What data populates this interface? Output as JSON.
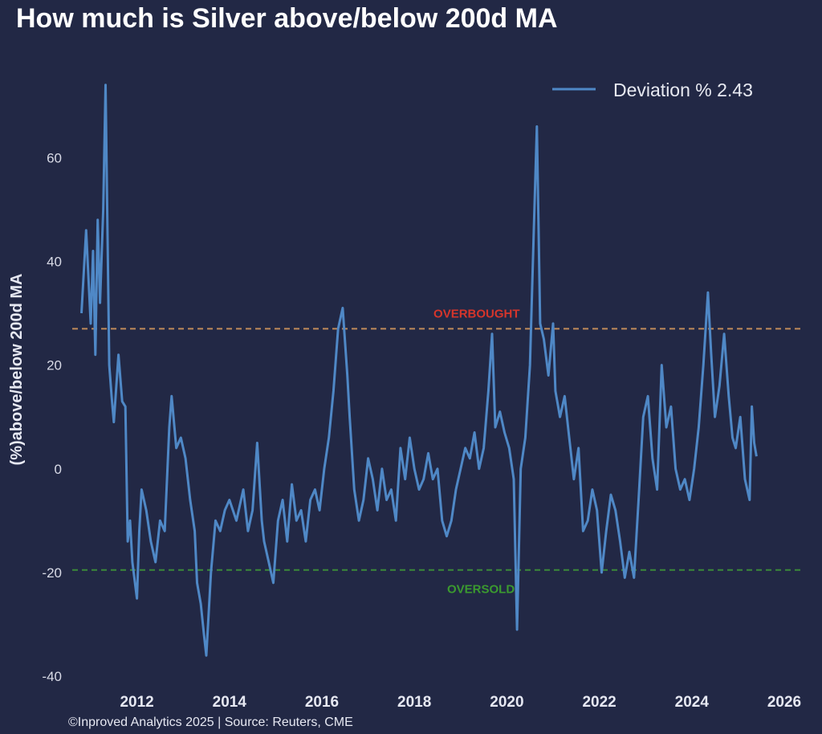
{
  "chart_data": {
    "type": "line",
    "title": "How much is Silver above/below 200d MA",
    "ylabel": "(%)above/below 200d MA",
    "xlabel": "",
    "x_ticks": [
      "2012",
      "2014",
      "2016",
      "2018",
      "2020",
      "2022",
      "2024",
      "2026"
    ],
    "y_ticks": [
      "-40",
      "-20",
      "0",
      "20",
      "40",
      "60"
    ],
    "xlim": [
      2010.6,
      2026.4
    ],
    "ylim": [
      -42,
      78
    ],
    "grid": false,
    "legend_position": "top-right",
    "series": [
      {
        "name": "Deviation % 2.43",
        "color": "#4f88c6",
        "x": [
          2010.8,
          2010.9,
          2011.0,
          2011.05,
          2011.1,
          2011.15,
          2011.2,
          2011.27,
          2011.32,
          2011.4,
          2011.45,
          2011.5,
          2011.6,
          2011.68,
          2011.75,
          2011.8,
          2011.85,
          2011.9,
          2012.0,
          2012.05,
          2012.1,
          2012.2,
          2012.3,
          2012.4,
          2012.5,
          2012.6,
          2012.7,
          2012.75,
          2012.85,
          2012.95,
          2013.05,
          2013.15,
          2013.25,
          2013.3,
          2013.38,
          2013.45,
          2013.5,
          2013.6,
          2013.7,
          2013.8,
          2013.9,
          2014.0,
          2014.15,
          2014.3,
          2014.4,
          2014.5,
          2014.6,
          2014.7,
          2014.75,
          2014.85,
          2014.95,
          2015.05,
          2015.15,
          2015.25,
          2015.35,
          2015.45,
          2015.55,
          2015.65,
          2015.75,
          2015.85,
          2015.95,
          2016.05,
          2016.15,
          2016.25,
          2016.35,
          2016.45,
          2016.55,
          2016.6,
          2016.7,
          2016.8,
          2016.9,
          2017.0,
          2017.1,
          2017.2,
          2017.3,
          2017.4,
          2017.5,
          2017.6,
          2017.7,
          2017.8,
          2017.9,
          2018.0,
          2018.1,
          2018.2,
          2018.3,
          2018.4,
          2018.5,
          2018.6,
          2018.7,
          2018.8,
          2018.9,
          2019.0,
          2019.1,
          2019.2,
          2019.3,
          2019.4,
          2019.5,
          2019.6,
          2019.68,
          2019.75,
          2019.85,
          2019.95,
          2020.05,
          2020.15,
          2020.22,
          2020.3,
          2020.4,
          2020.5,
          2020.58,
          2020.65,
          2020.72,
          2020.8,
          2020.9,
          2021.0,
          2021.05,
          2021.15,
          2021.25,
          2021.35,
          2021.45,
          2021.55,
          2021.65,
          2021.75,
          2021.85,
          2021.95,
          2022.05,
          2022.15,
          2022.25,
          2022.35,
          2022.45,
          2022.55,
          2022.65,
          2022.75,
          2022.85,
          2022.95,
          2023.05,
          2023.15,
          2023.25,
          2023.35,
          2023.45,
          2023.55,
          2023.65,
          2023.75,
          2023.85,
          2023.95,
          2024.05,
          2024.15,
          2024.25,
          2024.35,
          2024.42,
          2024.5,
          2024.6,
          2024.7,
          2024.8,
          2024.88,
          2024.95,
          2025.05,
          2025.15,
          2025.25,
          2025.3,
          2025.35,
          2025.4
        ],
        "values": [
          30,
          46,
          28,
          42,
          22,
          48,
          32,
          50,
          74,
          20,
          14,
          9,
          22,
          13,
          12,
          -14,
          -10,
          -18,
          -25,
          -12,
          -4,
          -8,
          -14,
          -18,
          -10,
          -12,
          8,
          14,
          4,
          6,
          2,
          -6,
          -12,
          -22,
          -26,
          -32,
          -36,
          -20,
          -10,
          -12,
          -8,
          -6,
          -10,
          -4,
          -12,
          -8,
          5,
          -10,
          -14,
          -18,
          -22,
          -10,
          -6,
          -14,
          -3,
          -10,
          -8,
          -14,
          -6,
          -4,
          -8,
          0,
          6,
          15,
          27,
          31,
          18,
          10,
          -4,
          -10,
          -6,
          2,
          -2,
          -8,
          0,
          -6,
          -4,
          -10,
          4,
          -2,
          6,
          0,
          -4,
          -2,
          3,
          -2,
          0,
          -10,
          -13,
          -10,
          -4,
          0,
          4,
          2,
          7,
          0,
          4,
          15,
          26,
          8,
          11,
          7,
          4,
          -2,
          -31,
          0,
          6,
          20,
          45,
          66,
          28,
          25,
          18,
          28,
          15,
          10,
          14,
          6,
          -2,
          4,
          -12,
          -10,
          -4,
          -8,
          -20,
          -12,
          -5,
          -8,
          -14,
          -21,
          -16,
          -21,
          -6,
          10,
          14,
          2,
          -4,
          20,
          8,
          12,
          0,
          -4,
          -2,
          -6,
          0,
          8,
          20,
          34,
          22,
          10,
          16,
          26,
          14,
          6,
          4,
          10,
          -2,
          -6,
          12,
          5,
          2.4
        ]
      }
    ],
    "reference_lines": [
      {
        "label": "OVERBOUGHT",
        "y": 27,
        "color": "#c08a5a",
        "label_color": "#d5352b"
      },
      {
        "label": "OVERSOLD",
        "y": -19.5,
        "color": "#3b8a3a",
        "label_color": "#3b9a2f"
      }
    ],
    "annotation_x": [
      2019.0,
      2019.3
    ],
    "credit": "©Inproved Analytics 2025 | Source: Reuters, CME"
  }
}
